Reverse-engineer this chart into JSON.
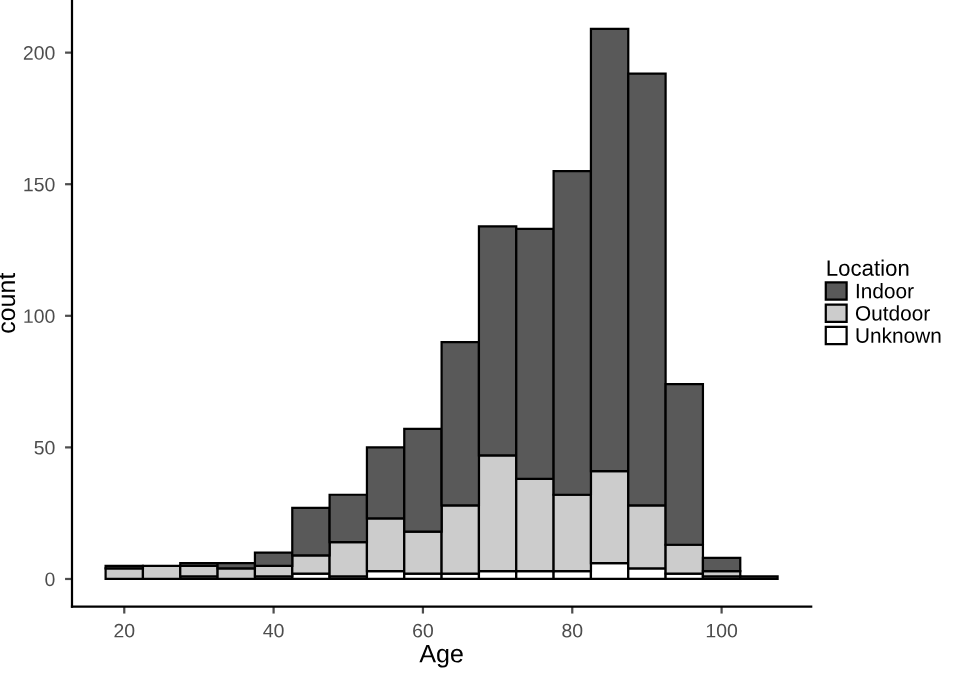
{
  "chart_data": {
    "type": "bar",
    "xlabel": "Age",
    "ylabel": "count",
    "legend_title": "Location",
    "legend": "right",
    "grid": false,
    "stacked": true,
    "x": [
      20,
      25,
      30,
      35,
      40,
      45,
      50,
      55,
      60,
      65,
      70,
      75,
      80,
      85,
      90,
      95,
      100,
      105
    ],
    "series": [
      {
        "name": "Unknown",
        "color": "#ffffff",
        "values": [
          0,
          0,
          1,
          0,
          1,
          2,
          1,
          3,
          2,
          2,
          3,
          3,
          3,
          6,
          4,
          2,
          1,
          0
        ]
      },
      {
        "name": "Outdoor",
        "color": "#cccccc",
        "values": [
          4,
          5,
          4,
          4,
          4,
          7,
          13,
          20,
          16,
          26,
          44,
          35,
          29,
          35,
          24,
          11,
          2,
          0
        ]
      },
      {
        "name": "Indoor",
        "color": "#595959",
        "values": [
          1,
          0,
          1,
          2,
          5,
          18,
          18,
          27,
          39,
          62,
          87,
          95,
          123,
          168,
          164,
          61,
          5,
          1
        ]
      }
    ],
    "xlim": [
      13,
      112
    ],
    "xticks": [
      20,
      40,
      60,
      80,
      100
    ],
    "ylim": [
      -10.5,
      220
    ],
    "yticks": [
      0,
      50,
      100,
      150,
      200
    ]
  }
}
